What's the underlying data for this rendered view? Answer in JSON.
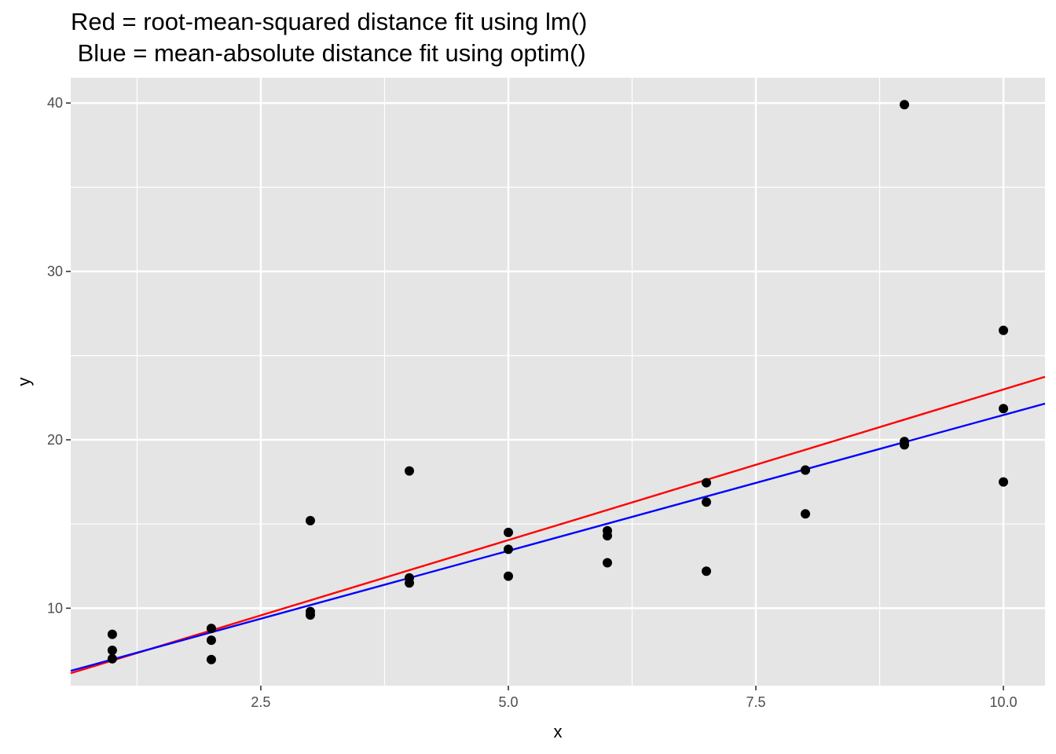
{
  "chart_data": {
    "type": "scatter",
    "title_lines": [
      "Red = root-mean-squared distance fit using lm()",
      " Blue = mean-absolute distance fit using optim()"
    ],
    "xlabel": "x",
    "ylabel": "y",
    "xlim": [
      0.58,
      10.42
    ],
    "ylim": [
      5.4,
      41.5
    ],
    "x_ticks": [
      2.5,
      5.0,
      7.5,
      10.0
    ],
    "x_tick_labels": [
      "2.5",
      "5.0",
      "7.5",
      "10.0"
    ],
    "y_ticks": [
      10,
      20,
      30,
      40
    ],
    "y_tick_labels": [
      "10",
      "20",
      "30",
      "40"
    ],
    "grid": true,
    "background": "#e5e5e5",
    "gridline_color": "#ffffff",
    "points": {
      "color": "#000000",
      "x": [
        1,
        1,
        1,
        2,
        2,
        2,
        3,
        3,
        3,
        4,
        4,
        4,
        5,
        5,
        5,
        6,
        6,
        6,
        7,
        7,
        7,
        8,
        8,
        8,
        9,
        9,
        9,
        10,
        10,
        10
      ],
      "y": [
        8.45,
        7.5,
        7.0,
        8.8,
        8.1,
        6.95,
        15.2,
        9.8,
        9.6,
        18.15,
        11.8,
        11.5,
        14.5,
        13.5,
        11.9,
        14.6,
        14.3,
        12.7,
        17.45,
        16.3,
        12.2,
        18.2,
        18.2,
        15.6,
        39.9,
        19.9,
        19.7,
        26.5,
        21.85,
        17.5
      ]
    },
    "lines": [
      {
        "color": "#ff0000",
        "x": [
          0.58,
          10.42
        ],
        "y": [
          6.14,
          23.74
        ]
      },
      {
        "color": "#0000ff",
        "x": [
          0.58,
          10.42
        ],
        "y": [
          6.28,
          22.15
        ]
      }
    ]
  }
}
